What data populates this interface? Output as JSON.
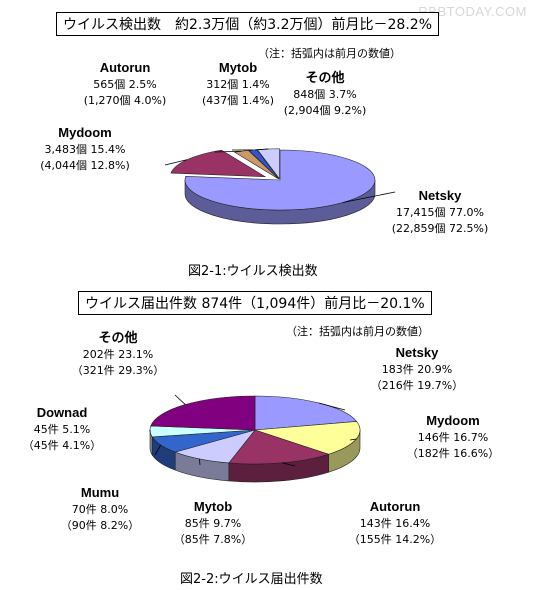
{
  "watermark": "RBBTODAY.COM",
  "chart_data": [
    {
      "type": "pie",
      "title": "ウイルス検出数　約2.3万個（約3.2万個）前月比－28.2%",
      "note": "（注：括弧内は前月の数値）",
      "caption": "図2-1:ウイルス検出数",
      "slices": [
        {
          "name": "Netsky",
          "value": 17415,
          "percent": 77.0,
          "line1": "17,415個 77.0%",
          "line2": "(22,859個 72.5%)",
          "color": "#9999ff"
        },
        {
          "name": "Mydoom",
          "value": 3483,
          "percent": 15.4,
          "line1": "3,483個 15.4%",
          "line2": "(4,044個 12.8%)",
          "color": "#993366"
        },
        {
          "name": "Autorun",
          "value": 565,
          "percent": 2.5,
          "line1": "565個 2.5%",
          "line2": "(1,270個 4.0%)",
          "color": "#cc9966"
        },
        {
          "name": "Mytob",
          "value": 312,
          "percent": 1.4,
          "line1": "312個 1.4%",
          "line2": "(437個 1.4%)",
          "color": "#3355cc"
        },
        {
          "name": "その他",
          "value": 848,
          "percent": 3.7,
          "line1": "848個 3.7%",
          "line2": "(2,904個 9.2%)",
          "color": "#ccccff"
        }
      ]
    },
    {
      "type": "pie",
      "title": "ウイルス届出件数 874件（1,094件）前月比－20.1%",
      "note": "（注：括弧内は前月の数値）",
      "caption": "図2-2:ウイルス届出件数",
      "slices": [
        {
          "name": "Netsky",
          "value": 183,
          "percent": 20.9,
          "line1": "183件 20.9%",
          "line2": "（216件 19.7%）",
          "color": "#9999ff"
        },
        {
          "name": "Mydoom",
          "value": 146,
          "percent": 16.7,
          "line1": "146件 16.7%",
          "line2": "（182件 16.6%）",
          "color": "#ffff99"
        },
        {
          "name": "Autorun",
          "value": 143,
          "percent": 16.4,
          "line1": "143件 16.4%",
          "line2": "（155件 14.2%）",
          "color": "#993366"
        },
        {
          "name": "Mytob",
          "value": 85,
          "percent": 9.7,
          "line1": "85件 9.7%",
          "line2": "（85件 7.8%）",
          "color": "#ccccff"
        },
        {
          "name": "Mumu",
          "value": 70,
          "percent": 8.0,
          "line1": "70件 8.0%",
          "line2": "（90件 8.2%）",
          "color": "#3366cc"
        },
        {
          "name": "Downad",
          "value": 45,
          "percent": 5.1,
          "line1": "45件 5.1%",
          "line2": "（45件 4.1%）",
          "color": "#ccffff"
        },
        {
          "name": "その他",
          "value": 202,
          "percent": 23.1,
          "line1": "202件 23.1%",
          "line2": "（321件 29.3%）",
          "color": "#800080"
        }
      ]
    }
  ]
}
